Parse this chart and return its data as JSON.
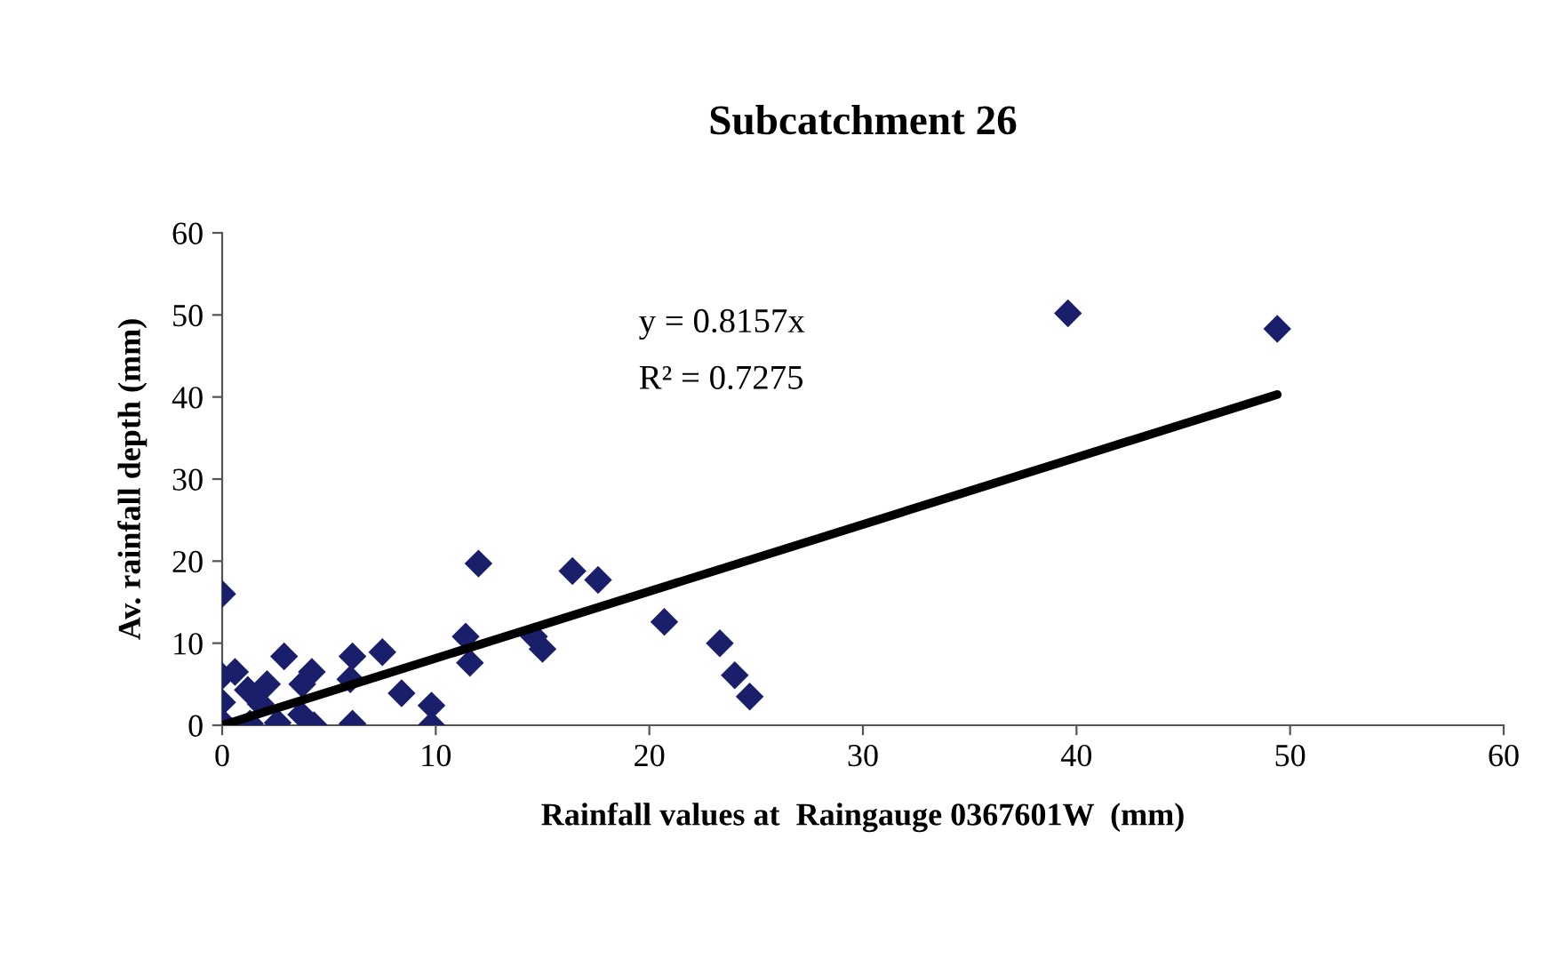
{
  "chart_data": {
    "type": "scatter",
    "title": "Subcatchment 26",
    "xlabel": "Rainfall values at  Raingauge 0367601W  (mm)",
    "ylabel": "Av. rainfall depth (mm)",
    "annotations": [
      "y = 0.8157x",
      "R² = 0.7275"
    ],
    "xlim": [
      0,
      60
    ],
    "ylim": [
      0,
      60
    ],
    "xticks": [
      0,
      10,
      20,
      30,
      40,
      50,
      60
    ],
    "yticks": [
      0,
      10,
      20,
      30,
      40,
      50,
      60
    ],
    "grid": false,
    "legend": false,
    "marker": "diamond",
    "series": [
      {
        "color": "#1a1f6b",
        "x": [
          39.6,
          49.4,
          12.0,
          16.4,
          17.6,
          11.4,
          11.6,
          14.6,
          15.0,
          20.7,
          23.3,
          24.0,
          24.7,
          0,
          2.9,
          6.1,
          7.5,
          8.4,
          9.8,
          9.8,
          6.1,
          4.2,
          3.75,
          6.0,
          2.1,
          0.6,
          0,
          3.7,
          4.3,
          0,
          1.2,
          1.3,
          2.6,
          0,
          1.8
        ],
        "values": [
          50.2,
          48.3,
          19.7,
          18.8,
          17.7,
          10.8,
          7.6,
          10.8,
          9.3,
          12.6,
          10.0,
          6.1,
          3.5,
          16,
          8.4,
          8.4,
          8.9,
          3.9,
          2.4,
          0,
          0.2,
          6.5,
          5,
          5.6,
          5,
          6.5,
          6,
          1.3,
          0,
          2.8,
          4.3,
          0.2,
          0.3,
          0.4,
          2.6
        ]
      },
      {
        "type": "line",
        "color": "#000000",
        "marker": "none",
        "x": [
          0,
          49.4
        ],
        "values": [
          0,
          40.3
        ]
      }
    ]
  }
}
